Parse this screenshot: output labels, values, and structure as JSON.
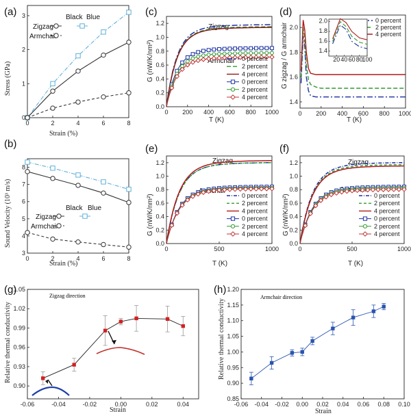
{
  "chart_data": [
    {
      "id": "a",
      "type": "line",
      "panel_label": "(a)",
      "xlabel": "Strain (%)",
      "ylabel": "Stress (GPa)",
      "xlim": [
        0,
        8
      ],
      "ylim": [
        0,
        3.3
      ],
      "xticks": [
        0,
        2,
        4,
        6,
        8
      ],
      "yticks": [
        0,
        1,
        2,
        3
      ],
      "legend_headers": [
        "Black",
        "Blue"
      ],
      "legend_rows": [
        "Zigzag",
        "Armchair"
      ],
      "legend_position": "top-left",
      "series": [
        {
          "label": "Zigzag",
          "color": "#5fb0d8",
          "dash": "6,2,1,2",
          "marker": "square",
          "x": [
            0,
            2,
            4,
            6,
            8
          ],
          "values": [
            0,
            1.0,
            1.82,
            2.52,
            3.1
          ]
        },
        {
          "label": "Zigzag",
          "color": "#333333",
          "dash": "",
          "marker": "circle",
          "x": [
            0,
            2,
            4,
            6,
            8
          ],
          "values": [
            0,
            0.78,
            1.37,
            1.84,
            2.22
          ]
        },
        {
          "label": "Armchair",
          "color": "#333333",
          "dash": "4,3",
          "marker": "circle",
          "x": [
            0,
            2,
            4,
            6,
            8
          ],
          "values": [
            0,
            0.28,
            0.46,
            0.61,
            0.73
          ]
        }
      ]
    },
    {
      "id": "b",
      "type": "line",
      "panel_label": "(b)",
      "xlabel": "Strain (%)",
      "ylabel": "Sound Velocity (10³ m/s)",
      "xlim": [
        0,
        8
      ],
      "ylim": [
        3,
        8.5
      ],
      "xticks": [
        0,
        2,
        4,
        6,
        8
      ],
      "yticks": [
        3,
        4,
        5,
        6,
        7,
        8
      ],
      "legend_headers": [
        "Black",
        "Blue"
      ],
      "legend_rows": [
        "Zigzag",
        "Armchair"
      ],
      "legend_position": "bottom-left",
      "series": [
        {
          "label": "Zigzag",
          "color": "#5fb0d8",
          "dash": "6,2,1,2",
          "marker": "square",
          "x": [
            0,
            2,
            4,
            6,
            8
          ],
          "values": [
            8.3,
            7.95,
            7.55,
            7.15,
            6.72
          ]
        },
        {
          "label": "Zigzag",
          "color": "#333333",
          "dash": "",
          "marker": "circle",
          "x": [
            0,
            2,
            4,
            6,
            8
          ],
          "values": [
            7.75,
            7.35,
            6.95,
            6.5,
            5.95
          ]
        },
        {
          "label": "Armchair",
          "color": "#333333",
          "dash": "4,3",
          "marker": "circle",
          "x": [
            0,
            2,
            4,
            6,
            8
          ],
          "values": [
            4.2,
            3.82,
            3.65,
            3.5,
            3.35
          ]
        }
      ]
    },
    {
      "id": "c",
      "type": "line",
      "panel_label": "(c)",
      "xlabel": "T (K)",
      "ylabel": "G (nW/K/nm²)",
      "xlim": [
        0,
        1000
      ],
      "ylim": [
        0,
        1.3
      ],
      "xticks": [
        0,
        200,
        400,
        600,
        800,
        1000
      ],
      "yticks": [
        0,
        0.2,
        0.4,
        0.6,
        0.8,
        1.0,
        1.2
      ],
      "group_labels": [
        "Zigzag",
        "Armchair"
      ],
      "legend": [
        "0 percent",
        "2 percent",
        "4 percent",
        "0 percent",
        "2 percent",
        "4 percent"
      ],
      "legend_position": "bottom-right",
      "curve_rate": 0.01,
      "series": [
        {
          "label": "0 percent",
          "color": "#1a2fa0",
          "dash": "8,3,2,3",
          "marker": "",
          "asymptote": 1.19
        },
        {
          "label": "2 percent",
          "color": "#2e9a2e",
          "dash": "6,3",
          "marker": "",
          "asymptote": 1.16
        },
        {
          "label": "4 percent",
          "color": "#8b1a1a",
          "dash": "",
          "marker": "",
          "asymptote": 1.15
        },
        {
          "label": "0 percent",
          "color": "#1a2fa0",
          "dash": "",
          "marker": "square",
          "asymptote": 0.85
        },
        {
          "label": "2 percent",
          "color": "#2e9a2e",
          "dash": "",
          "marker": "circle",
          "asymptote": 0.78
        },
        {
          "label": "4 percent",
          "color": "#c03030",
          "dash": "",
          "marker": "diamond",
          "asymptote": 0.72
        }
      ]
    },
    {
      "id": "d",
      "type": "line",
      "panel_label": "(d)",
      "xlabel": "T (K)",
      "ylabel": "G zigzag / G armchair",
      "xlim": [
        0,
        1000
      ],
      "ylim": [
        1.35,
        2.1
      ],
      "xticks": [
        0,
        200,
        400,
        600,
        800,
        1000
      ],
      "yticks": [
        1.4,
        1.6,
        1.8,
        2.0
      ],
      "legend": [
        "0 percent",
        "2 percent",
        "4 percent"
      ],
      "legend_position": "top-right",
      "series": [
        {
          "label": "0 percent",
          "color": "#1a2fa0",
          "dash": "8,3,2,3",
          "x": [
            10,
            30,
            45,
            60,
            80,
            100,
            150,
            200,
            300,
            500,
            1000
          ],
          "values": [
            1.55,
            1.93,
            1.84,
            1.6,
            1.49,
            1.45,
            1.44,
            1.44,
            1.44,
            1.44,
            1.44
          ]
        },
        {
          "label": "2 percent",
          "color": "#2e9a2e",
          "dash": "6,3",
          "x": [
            10,
            30,
            45,
            60,
            80,
            100,
            150,
            200,
            300,
            500,
            1000
          ],
          "values": [
            1.6,
            2.0,
            1.9,
            1.7,
            1.58,
            1.54,
            1.52,
            1.51,
            1.51,
            1.51,
            1.51
          ]
        },
        {
          "label": "4 percent",
          "color": "#b01818",
          "dash": "",
          "x": [
            10,
            30,
            45,
            60,
            80,
            100,
            150,
            200,
            300,
            500,
            1000
          ],
          "values": [
            1.65,
            2.06,
            1.98,
            1.8,
            1.67,
            1.63,
            1.62,
            1.62,
            1.62,
            1.62,
            1.62
          ]
        }
      ],
      "inset": {
        "xlim": [
          0,
          100
        ],
        "ylim": [
          1.3,
          2.05
        ],
        "xticks": [
          20,
          40,
          60,
          80,
          100
        ],
        "yticks": [
          1.4,
          1.6,
          1.8,
          2.0
        ]
      }
    },
    {
      "id": "e",
      "type": "line",
      "panel_label": "(e)",
      "xlabel": "T (K)",
      "ylabel": "G (nW/K/nm²)",
      "xlim": [
        0,
        1000
      ],
      "ylim": [
        0,
        1.3
      ],
      "xticks": [
        0,
        500,
        1000
      ],
      "yticks": [
        0,
        0.2,
        0.4,
        0.6,
        0.8,
        1.0,
        1.2
      ],
      "group_labels": [
        "Zigzag",
        "Armchair"
      ],
      "legend": [
        "0 percent",
        "2 percent",
        "4 percent",
        "0 percent",
        "2 percent",
        "4 percent"
      ],
      "legend_position": "bottom-right",
      "curve_rate": 0.0085,
      "series": [
        {
          "label": "0 percent",
          "color": "#1a2fa0",
          "dash": "5,2,1,2",
          "marker": "",
          "asymptote": 1.21
        },
        {
          "label": "2 percent",
          "color": "#2e9a2e",
          "dash": "4,3",
          "marker": "",
          "asymptote": 1.21
        },
        {
          "label": "4 percent",
          "color": "#b01818",
          "dash": "",
          "marker": "",
          "asymptote": 1.24
        },
        {
          "label": "0 percent",
          "color": "#1a2fa0",
          "dash": "",
          "marker": "square",
          "asymptote": 0.85
        },
        {
          "label": "2 percent",
          "color": "#2e9a2e",
          "dash": "",
          "marker": "circle",
          "asymptote": 0.83
        },
        {
          "label": "4 percent",
          "color": "#c03030",
          "dash": "",
          "marker": "diamond",
          "asymptote": 0.82
        }
      ]
    },
    {
      "id": "f",
      "type": "line",
      "panel_label": "(f)",
      "xlabel": "T (K)",
      "ylabel": "G (nW/K/nm²)",
      "xlim": [
        0,
        1000
      ],
      "ylim": [
        0,
        1.3
      ],
      "xticks": [
        0,
        500,
        1000
      ],
      "yticks": [
        0,
        0.2,
        0.4,
        0.6,
        0.8,
        1.0,
        1.2
      ],
      "group_labels": [
        "Zigzag",
        "Armchair"
      ],
      "legend": [
        "0 percent",
        "2 percent",
        "4 percent",
        "0 percent",
        "2 percent",
        "4 percent"
      ],
      "legend_position": "bottom-right",
      "curve_rate": 0.0085,
      "series": [
        {
          "label": "0 percent",
          "color": "#1a2fa0",
          "dash": "5,2,1,2",
          "marker": "",
          "asymptote": 1.21
        },
        {
          "label": "2 percent",
          "color": "#2e9a2e",
          "dash": "4,3",
          "marker": "",
          "asymptote": 1.18
        },
        {
          "label": "4 percent",
          "color": "#b01818",
          "dash": "",
          "marker": "",
          "asymptote": 1.16
        },
        {
          "label": "0 percent",
          "color": "#1a2fa0",
          "dash": "",
          "marker": "square",
          "asymptote": 0.85
        },
        {
          "label": "2 percent",
          "color": "#2e9a2e",
          "dash": "",
          "marker": "circle",
          "asymptote": 0.83
        },
        {
          "label": "4 percent",
          "color": "#c03030",
          "dash": "",
          "marker": "diamond",
          "asymptote": 0.81
        }
      ]
    },
    {
      "id": "g",
      "type": "line",
      "panel_label": "(g)",
      "title": "Zigzag direction",
      "xlabel": "Strain",
      "ylabel": "Relative thermal conductivity",
      "xlim": [
        -0.06,
        0.05
      ],
      "ylim": [
        0.88,
        1.05
      ],
      "xticks": [
        -0.06,
        -0.04,
        -0.02,
        0.0,
        0.02,
        0.04
      ],
      "yticks": [
        0.9,
        0.93,
        0.96,
        0.99,
        1.02,
        1.05
      ],
      "tick_labels_x": [
        "-0.06",
        "-0.04",
        "-0.02",
        "0.00",
        "0.02",
        "0.04"
      ],
      "tick_labels_y": [
        "0.90",
        "0.93",
        "0.96",
        "0.99",
        "1.02",
        "1.05"
      ],
      "series": [
        {
          "label": "Zigzag",
          "color": "#222222",
          "marker_color": "#d42020",
          "x": [
            -0.05,
            -0.03,
            -0.01,
            0.0,
            0.01,
            0.03,
            0.04
          ],
          "values": [
            0.912,
            0.933,
            0.986,
            1.0,
            1.005,
            1.004,
            0.993
          ],
          "errors": [
            0.01,
            0.01,
            0.023,
            0.005,
            0.02,
            0.02,
            0.015
          ]
        }
      ]
    },
    {
      "id": "h",
      "type": "line",
      "panel_label": "(h)",
      "title": "Armchair direction",
      "xlabel": "Strain",
      "ylabel": "Relative thermal conductivity",
      "xlim": [
        -0.06,
        0.1
      ],
      "ylim": [
        0.85,
        1.2
      ],
      "xticks": [
        -0.06,
        -0.04,
        -0.02,
        0.0,
        0.02,
        0.04,
        0.06,
        0.08,
        0.1
      ],
      "yticks": [
        0.85,
        0.9,
        0.95,
        1.0,
        1.05,
        1.1,
        1.15,
        1.2
      ],
      "tick_labels_x": [
        "-0.06",
        "-0.04",
        "-0.02",
        "0.00",
        "0.02",
        "0.04",
        "0.06",
        "0.08",
        "0.10"
      ],
      "tick_labels_y": [
        "0.85",
        "0.90",
        "0.95",
        "1.00",
        "1.05",
        "1.10",
        "1.15",
        "1.20"
      ],
      "series": [
        {
          "label": "Armchair",
          "color": "#2a55b0",
          "marker_color": "#2a55b0",
          "x": [
            -0.05,
            -0.03,
            -0.01,
            0.0,
            0.01,
            0.03,
            0.05,
            0.07,
            0.08
          ],
          "values": [
            0.915,
            0.965,
            0.997,
            1.0,
            1.035,
            1.075,
            1.11,
            1.13,
            1.145
          ],
          "errors": [
            0.02,
            0.02,
            0.01,
            0.012,
            0.012,
            0.02,
            0.025,
            0.02,
            0.01
          ]
        }
      ]
    }
  ]
}
